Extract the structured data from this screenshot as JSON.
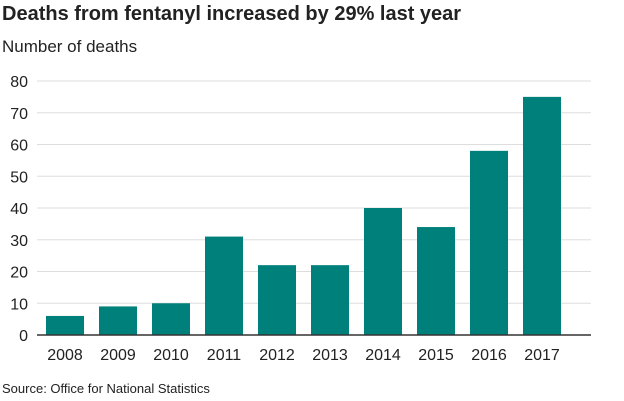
{
  "title": "Deaths from fentanyl increased by 29% last year",
  "subtitle": "Number of deaths",
  "source": "Source: Office for National Statistics",
  "chart_data": {
    "type": "bar",
    "title": "Deaths from fentanyl increased by 29% last year",
    "ylabel": "Number of deaths",
    "categories": [
      "2008",
      "2009",
      "2010",
      "2011",
      "2012",
      "2013",
      "2014",
      "2015",
      "2016",
      "2017"
    ],
    "values": [
      6,
      9,
      10,
      31,
      22,
      22,
      40,
      34,
      58,
      75
    ],
    "ylim": [
      0,
      80
    ],
    "yticks": [
      0,
      10,
      20,
      30,
      40,
      50,
      60,
      70,
      80
    ],
    "grid": true,
    "bar_color": "#00807a",
    "grid_color": "#dddddd",
    "axis_color": "#333333"
  }
}
